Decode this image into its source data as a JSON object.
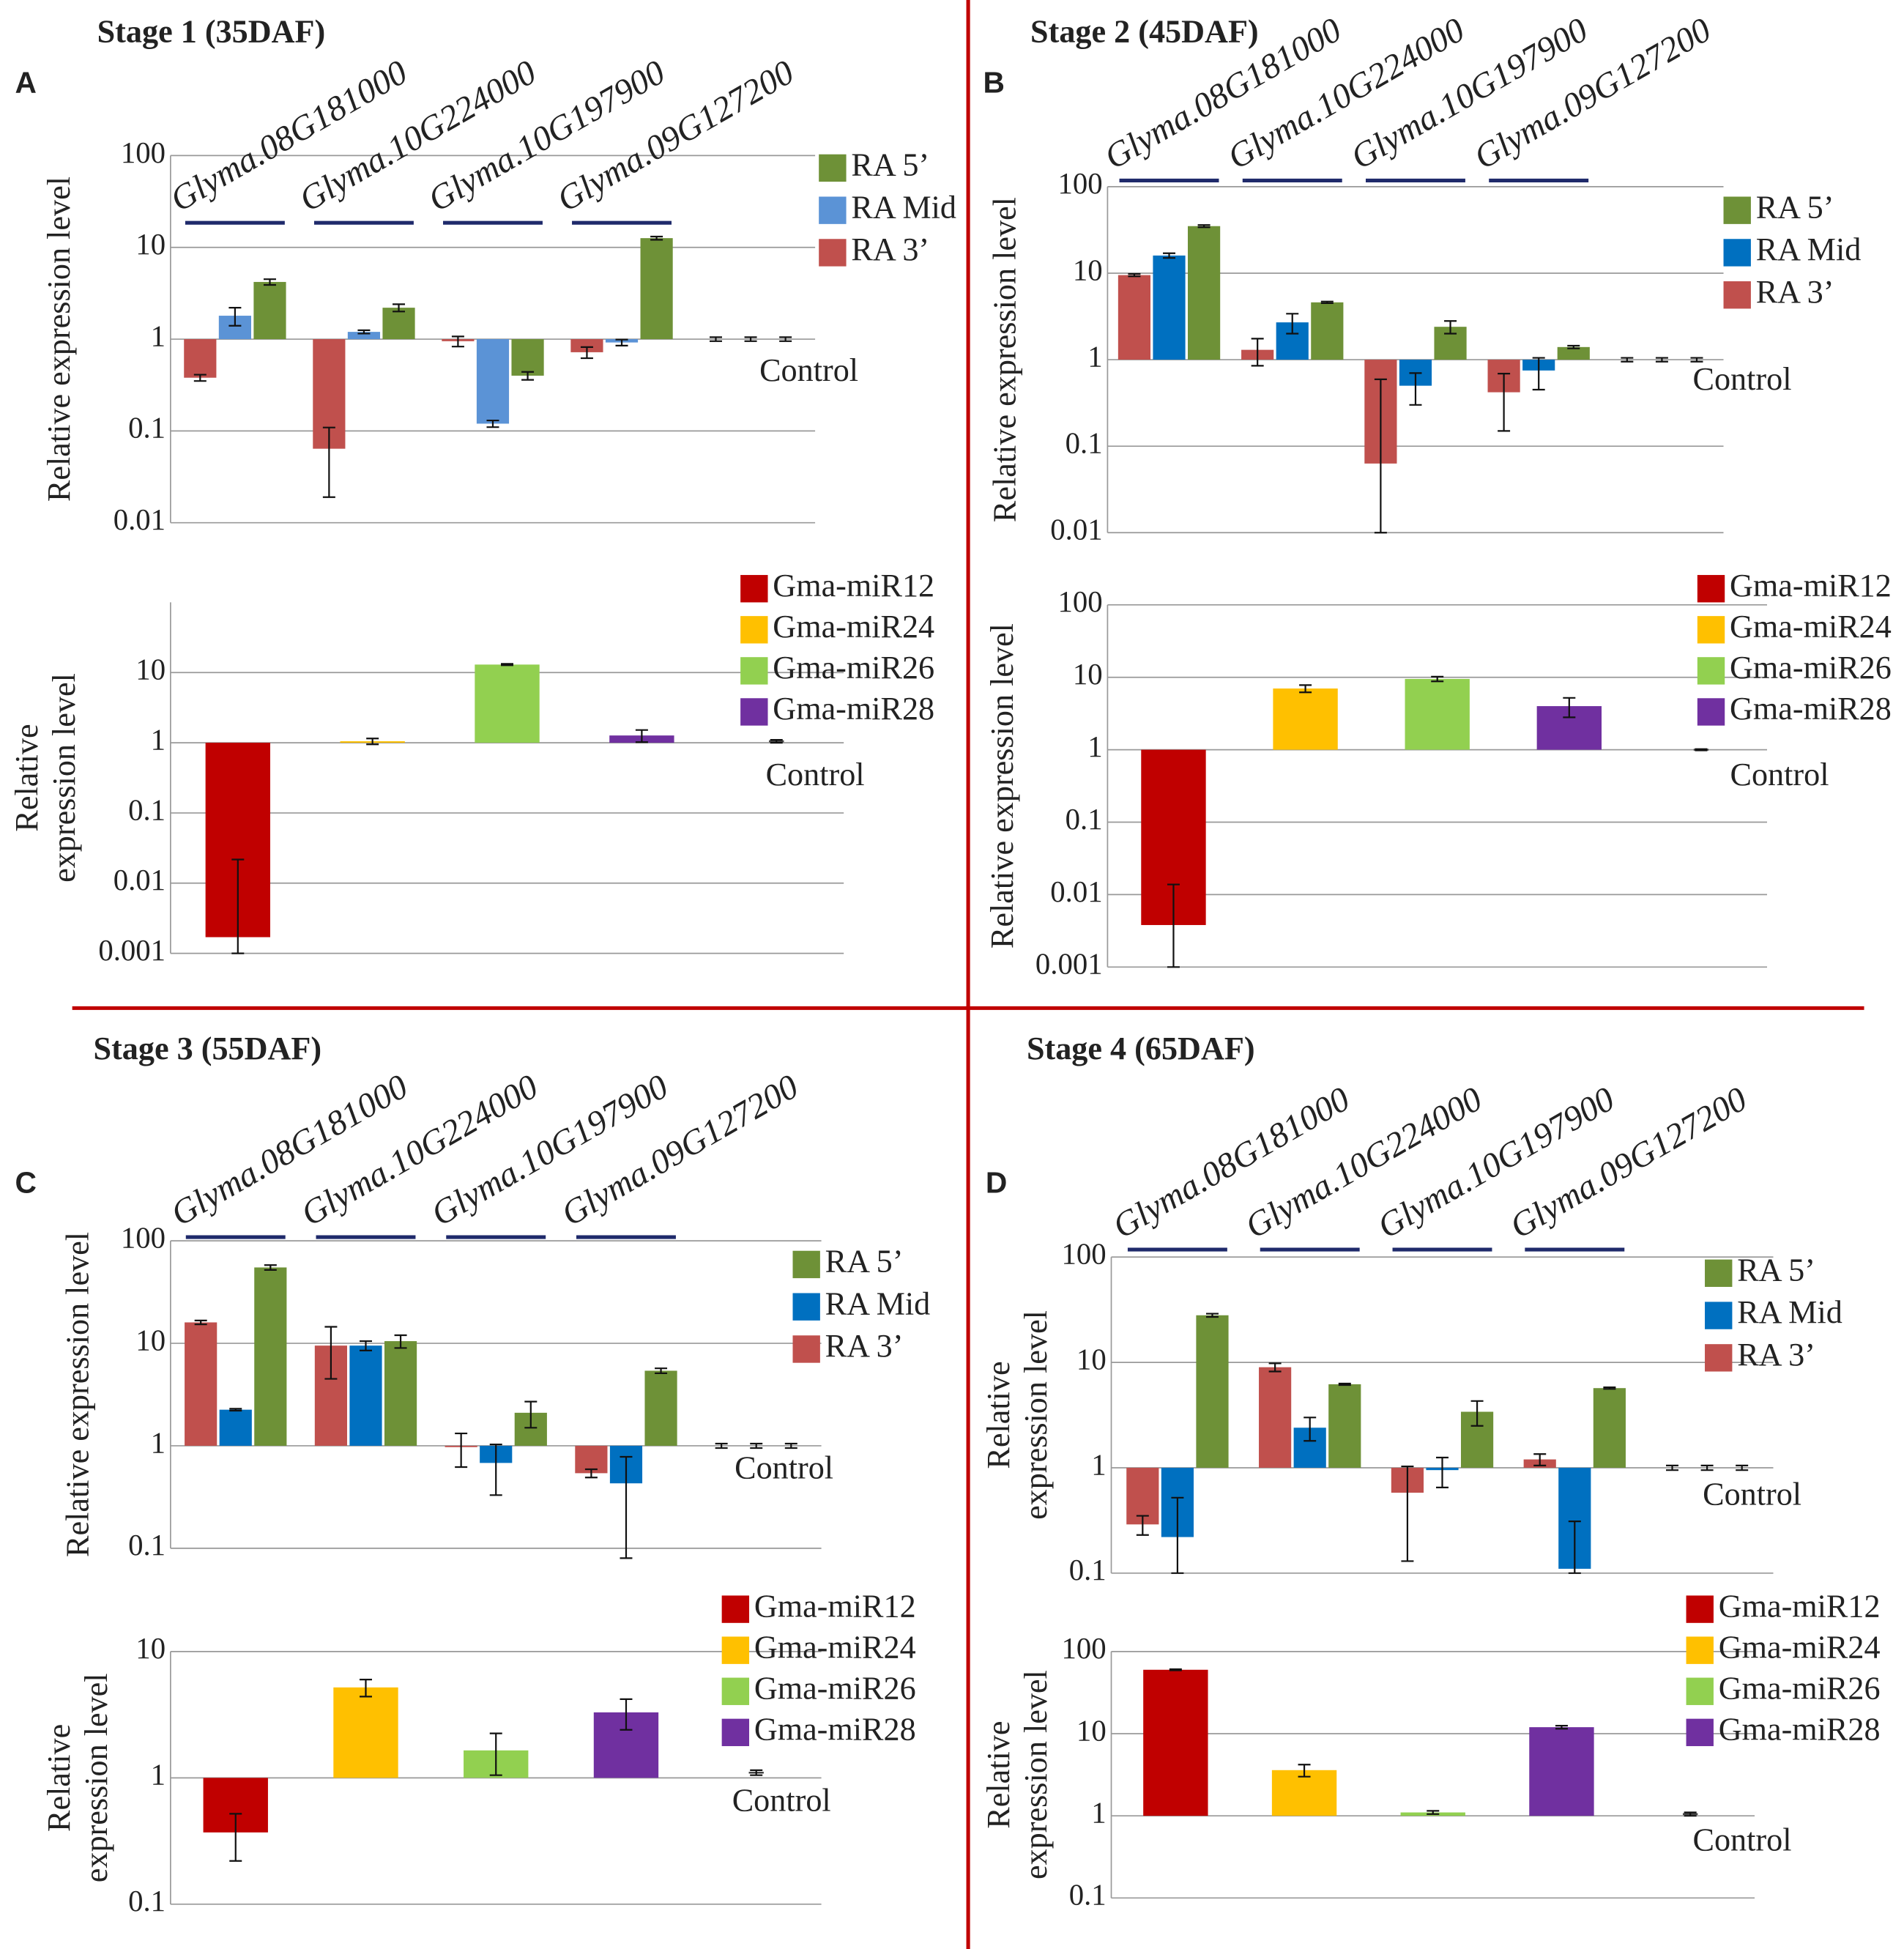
{
  "chart_data": [
    {
      "type": "bar",
      "panel": "A",
      "stage": "Stage 1 (35DAF)",
      "log_scale": true,
      "grid": true,
      "y_label": [
        "Relative expression level"
      ],
      "categories": [
        "Glyma.08G181000",
        "Glyma.10G224000",
        "Glyma.10G197900",
        "Glyma.09G127200",
        "Control"
      ],
      "ylim": [
        0.01,
        100
      ],
      "yticks": [
        0.01,
        0.1,
        1,
        10,
        100
      ],
      "series": [
        {
          "name": "RA 3’",
          "color": "#c0504d",
          "values": [
            0.38,
            0.064,
            0.95,
            0.72,
            1
          ],
          "errors": [
            0.03,
            0.045,
            0.12,
            0.1,
            0.05
          ]
        },
        {
          "name": "RA Mid",
          "color": "#5b93d6",
          "values": [
            1.8,
            1.2,
            0.12,
            0.92,
            1
          ],
          "errors": [
            0.4,
            0.05,
            0.01,
            0.07,
            0.05
          ]
        },
        {
          "name": "RA 5’",
          "color": "#6e9137",
          "values": [
            4.2,
            2.2,
            0.4,
            12.6,
            1
          ],
          "errors": [
            0.3,
            0.2,
            0.04,
            0.5,
            0.05
          ]
        }
      ]
    },
    {
      "type": "bar",
      "log_scale": true,
      "grid": true,
      "y_label": [
        "Relative",
        "expression level"
      ],
      "categories": [
        "Gma-miR12",
        "Gma-miR24",
        "Gma-miR26",
        "Gma-miR28",
        "Control"
      ],
      "ylim": [
        0.001,
        100
      ],
      "yticks": [
        0.001,
        0.01,
        0.1,
        1,
        10
      ],
      "colors": [
        "#c00000",
        "#ffc000",
        "#92d050",
        "#7030a0"
      ],
      "values": [
        0.0017,
        1.05,
        13,
        1.27,
        1.05
      ],
      "errors": [
        0.02,
        0.1,
        0.3,
        0.25,
        0.05
      ]
    },
    {
      "type": "bar",
      "panel": "B",
      "stage": "Stage 2 (45DAF)",
      "log_scale": true,
      "grid": true,
      "y_label": [
        "Relative expression level"
      ],
      "categories": [
        "Glyma.08G181000",
        "Glyma.10G224000",
        "Glyma.10G197900",
        "Glyma.09G127200",
        "Control"
      ],
      "ylim": [
        0.01,
        100
      ],
      "yticks": [
        0.01,
        0.1,
        1,
        10,
        100
      ],
      "series": [
        {
          "name": "RA 3’",
          "color": "#c0504d",
          "values": [
            9.5,
            1.3,
            0.063,
            0.42,
            1
          ],
          "errors": [
            0.3,
            0.45,
            0.53,
            0.27,
            0.05
          ]
        },
        {
          "name": "RA Mid",
          "color": "#0070c0",
          "values": [
            16,
            2.7,
            0.5,
            0.75,
            1
          ],
          "errors": [
            1,
            0.7,
            0.2,
            0.3,
            0.05
          ]
        },
        {
          "name": "RA 5’",
          "color": "#6e9137",
          "values": [
            35,
            4.6,
            2.4,
            1.4,
            1
          ],
          "errors": [
            1,
            0.1,
            0.4,
            0.05,
            0.05
          ]
        }
      ]
    },
    {
      "type": "bar",
      "log_scale": true,
      "grid": true,
      "y_label": [
        "Relative expression level"
      ],
      "categories": [
        "Gma-miR12",
        "Gma-miR24",
        "Gma-miR26",
        "Gma-miR28",
        "Control"
      ],
      "ylim": [
        0.001,
        100
      ],
      "yticks": [
        0.001,
        0.01,
        0.1,
        1,
        10,
        100
      ],
      "colors": [
        "#c00000",
        "#ffc000",
        "#92d050",
        "#7030a0"
      ],
      "values": [
        0.0038,
        7,
        9.5,
        4,
        1
      ],
      "errors": [
        0.01,
        0.8,
        0.7,
        1.2,
        0.02
      ]
    },
    {
      "type": "bar",
      "panel": "C",
      "stage": "Stage 3 (55DAF)",
      "log_scale": true,
      "grid": true,
      "y_label": [
        "Relative expression level"
      ],
      "categories": [
        "Glyma.08G181000",
        "Glyma.10G224000",
        "Glyma.10G197900",
        "Glyma.09G127200",
        "Control"
      ],
      "ylim": [
        0.1,
        100
      ],
      "yticks": [
        0.1,
        1,
        10,
        100
      ],
      "series": [
        {
          "name": "RA 3’",
          "color": "#c0504d",
          "values": [
            16,
            9.5,
            0.97,
            0.54,
            1
          ],
          "errors": [
            0.7,
            5,
            0.35,
            0.05,
            0.05
          ]
        },
        {
          "name": "RA Mid",
          "color": "#0070c0",
          "values": [
            2.25,
            9.5,
            0.68,
            0.43,
            1
          ],
          "errors": [
            0.05,
            1,
            0.35,
            0.35,
            0.05
          ]
        },
        {
          "name": "RA 5’",
          "color": "#6e9137",
          "values": [
            55,
            10.5,
            2.1,
            5.4,
            1
          ],
          "errors": [
            3,
            1.5,
            0.6,
            0.3,
            0.05
          ]
        }
      ]
    },
    {
      "type": "bar",
      "log_scale": true,
      "grid": true,
      "y_label": [
        "Relative",
        "expression level"
      ],
      "categories": [
        "Gma-miR12",
        "Gma-miR24",
        "Gma-miR26",
        "Gma-miR28",
        "Control"
      ],
      "ylim": [
        0.1,
        10
      ],
      "yticks": [
        0.1,
        1,
        10
      ],
      "colors": [
        "#c00000",
        "#ffc000",
        "#92d050",
        "#7030a0"
      ],
      "values": [
        0.37,
        5.2,
        1.65,
        3.3,
        1.1
      ],
      "errors": [
        0.15,
        0.8,
        0.6,
        0.9,
        0.05
      ]
    },
    {
      "type": "bar",
      "panel": "D",
      "stage": "Stage 4 (65DAF)",
      "log_scale": true,
      "grid": true,
      "y_label": [
        "Relative",
        "expression level"
      ],
      "categories": [
        "Glyma.08G181000",
        "Glyma.10G224000",
        "Glyma.10G197900",
        "Glyma.09G127200",
        "Control"
      ],
      "ylim": [
        0.1,
        100
      ],
      "yticks": [
        0.1,
        1,
        10,
        100
      ],
      "series": [
        {
          "name": "RA 3’",
          "color": "#c0504d",
          "values": [
            0.29,
            9,
            0.58,
            1.2,
            1
          ],
          "errors": [
            0.06,
            0.8,
            0.45,
            0.15,
            0.05
          ]
        },
        {
          "name": "RA Mid",
          "color": "#0070c0",
          "values": [
            0.22,
            2.4,
            0.95,
            0.11,
            1
          ],
          "errors": [
            0.3,
            0.6,
            0.3,
            0.2,
            0.05
          ]
        },
        {
          "name": "RA 5’",
          "color": "#6e9137",
          "values": [
            28,
            6.2,
            3.4,
            5.7,
            1
          ],
          "errors": [
            1,
            0.1,
            0.9,
            0.1,
            0.05
          ]
        }
      ]
    },
    {
      "type": "bar",
      "log_scale": true,
      "grid": true,
      "y_label": [
        "Relative",
        "expression level"
      ],
      "categories": [
        "Gma-miR12",
        "Gma-miR24",
        "Gma-miR26",
        "Gma-miR28",
        "Control"
      ],
      "ylim": [
        0.1,
        100
      ],
      "yticks": [
        0.1,
        1,
        10,
        100
      ],
      "colors": [
        "#c00000",
        "#ffc000",
        "#92d050",
        "#7030a0"
      ],
      "values": [
        60,
        3.6,
        1.1,
        12,
        1.05
      ],
      "errors": [
        1,
        0.6,
        0.05,
        0.5,
        0.05
      ]
    }
  ]
}
